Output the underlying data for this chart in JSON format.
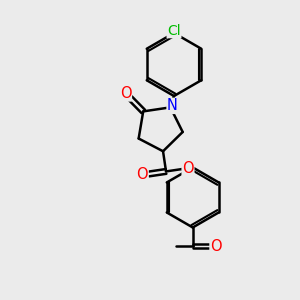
{
  "bg_color": "#ebebeb",
  "bond_color": "#000000",
  "bond_width": 1.8,
  "atom_colors": {
    "O": "#ff0000",
    "N": "#0000ff",
    "Cl": "#00bb00",
    "C": "#000000"
  },
  "font_size": 9.5,
  "fig_size": [
    3.0,
    3.0
  ],
  "dpi": 100
}
